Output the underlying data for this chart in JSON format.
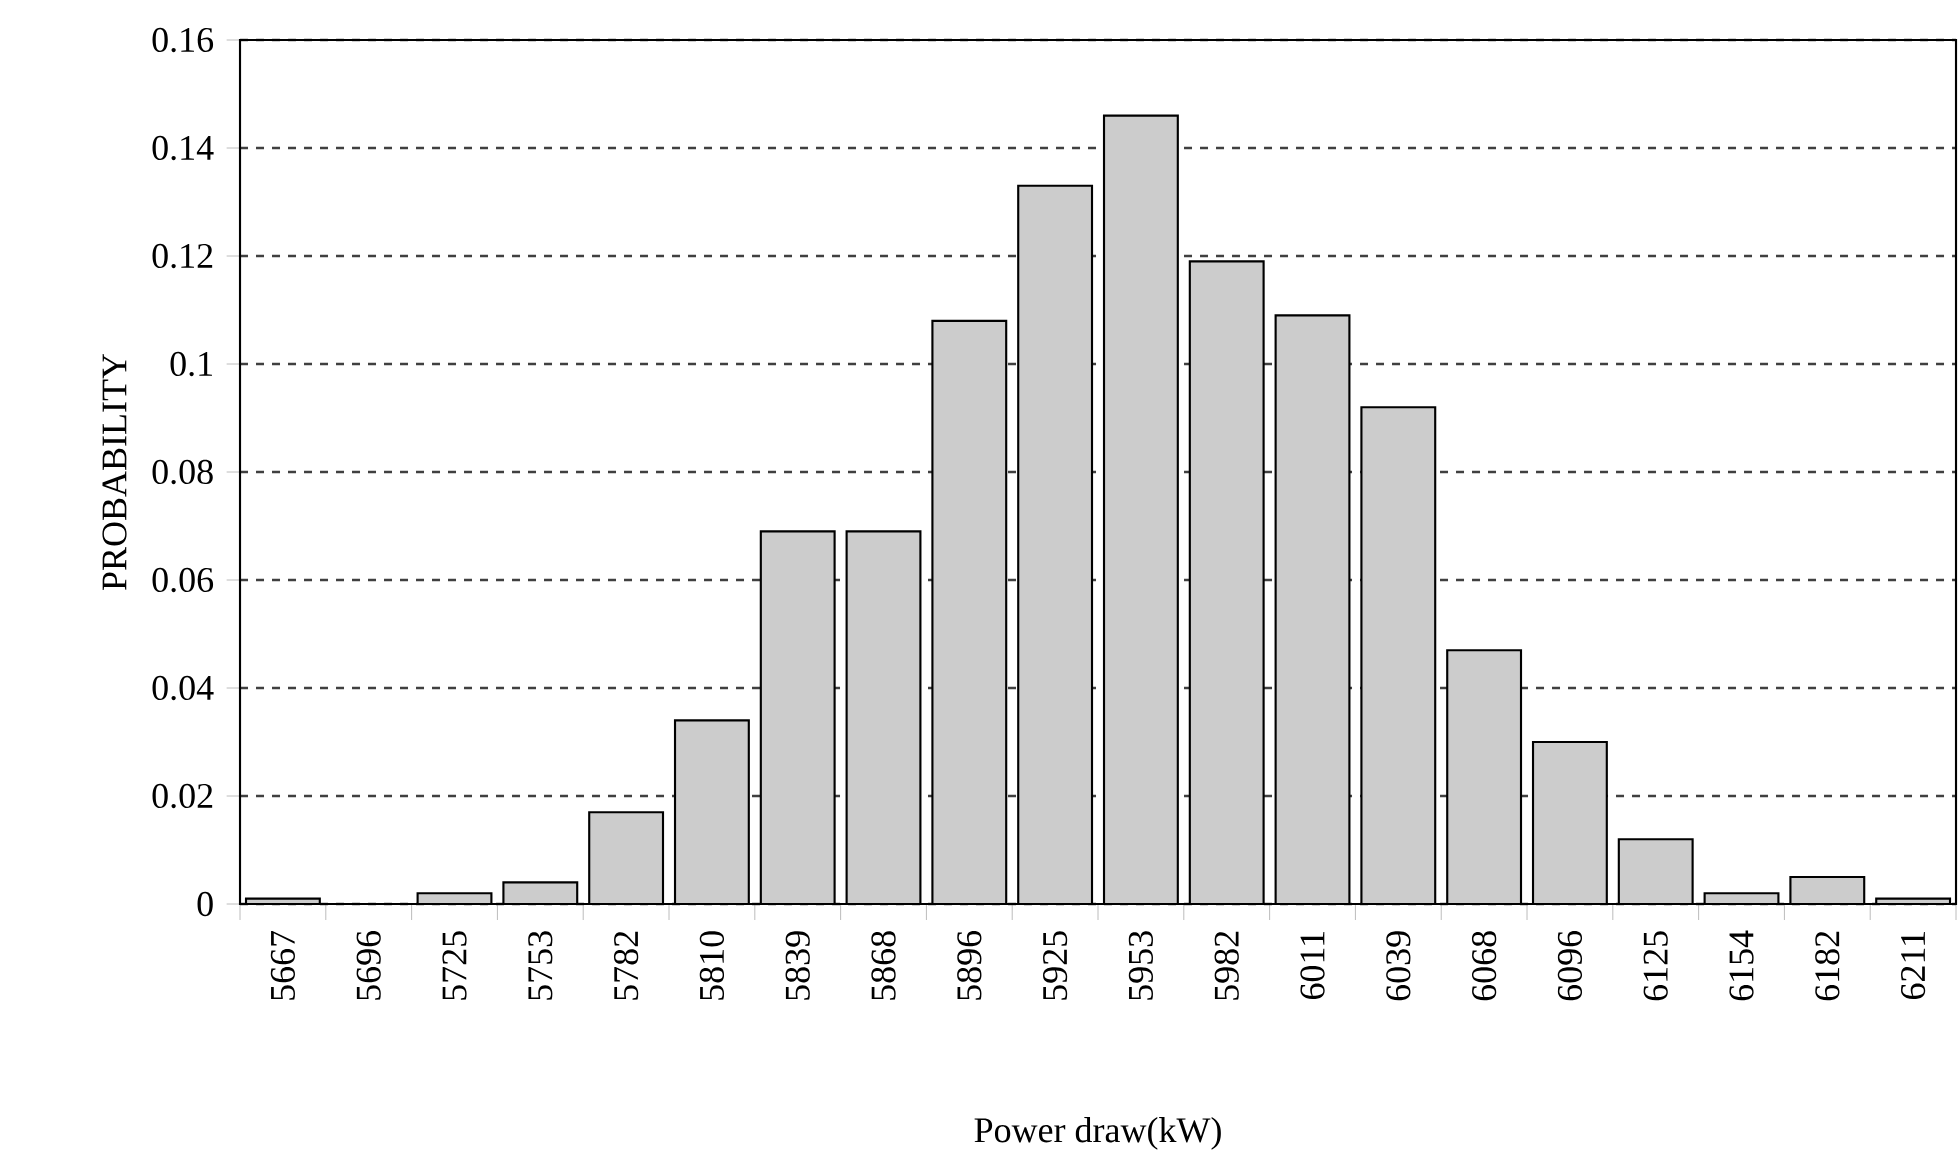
{
  "chart_data": {
    "type": "bar",
    "xlabel": "Power draw(kW)",
    "ylabel": "PROBABILITY",
    "categories": [
      "5667",
      "5696",
      "5725",
      "5753",
      "5782",
      "5810",
      "5839",
      "5868",
      "5896",
      "5925",
      "5953",
      "5982",
      "6011",
      "6039",
      "6068",
      "6096",
      "6125",
      "6154",
      "6182",
      "6211"
    ],
    "values": [
      0.001,
      0,
      0.002,
      0.004,
      0.017,
      0.034,
      0.069,
      0.069,
      0.108,
      0.133,
      0.146,
      0.119,
      0.109,
      0.092,
      0.047,
      0.03,
      0.012,
      0.002,
      0.005,
      0.001
    ],
    "color": "#cccccc",
    "ylim": [
      0,
      0.16
    ],
    "yticks": [
      0,
      0.02,
      0.04,
      0.06,
      0.08,
      0.1,
      0.12,
      0.14,
      0.16
    ],
    "grid": "y"
  }
}
